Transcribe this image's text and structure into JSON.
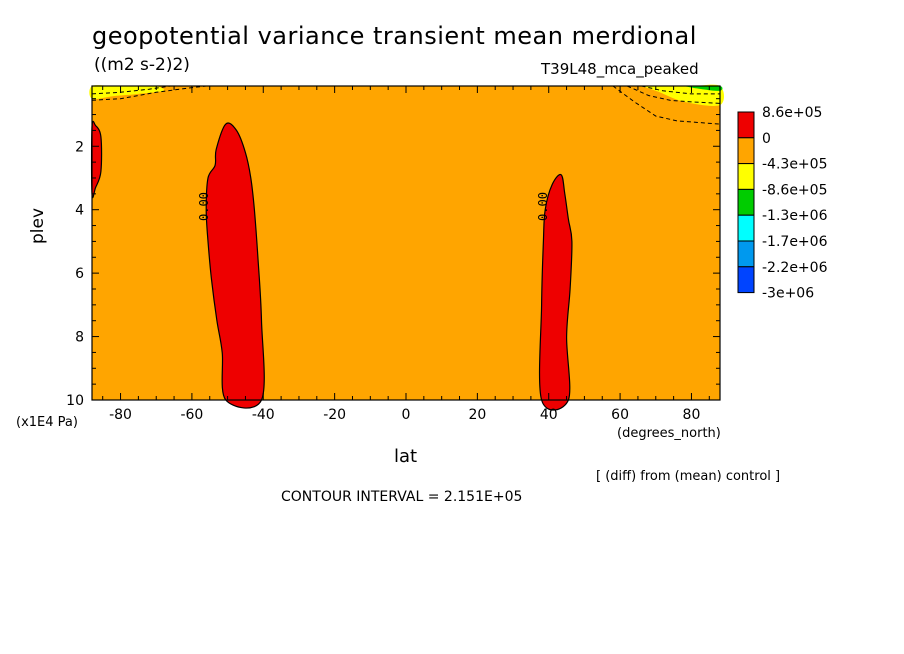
{
  "title": "geopotential variance transient mean merdional",
  "units": "((m2 s-2)2)",
  "run_name": "T39L48_mca_peaked",
  "note": "[ (diff) from (mean) control ]",
  "contour_interval": "CONTOUR INTERVAL = 2.151E+05",
  "chart_data": {
    "type": "contour",
    "xlabel": "lat",
    "xunits": "(degrees_north)",
    "ylabel": "plev",
    "yunits": "(x1E4 Pa)",
    "xlim": [
      -88,
      88
    ],
    "ylim": [
      10,
      0.1
    ],
    "y_inverted": true,
    "xticks": [
      -80,
      -60,
      -40,
      -20,
      0,
      20,
      40,
      60,
      80
    ],
    "xtick_labels": [
      "-80",
      "-60",
      "-40",
      "-20",
      "0",
      "20",
      "40",
      "60",
      "80"
    ],
    "yticks": [
      2,
      4,
      6,
      8,
      10
    ],
    "ytick_labels": [
      "2",
      "4",
      "6",
      "8",
      "10"
    ],
    "contour_labels": [
      {
        "text": "0.00",
        "lat": -55.5,
        "plev": 3.9
      },
      {
        "text": "0.00",
        "lat": 39.5,
        "plev": 3.9
      }
    ],
    "colorbar": {
      "labels": [
        "8.6e+05",
        "0",
        "-4.3e+05",
        "-8.6e+05",
        "-1.3e+06",
        "-1.7e+06",
        "-2.2e+06",
        "-3e+06"
      ],
      "colors": [
        "#ee0000",
        "#ffa500",
        "#ffff00",
        "#00cc00",
        "#00ffff",
        "#0099ee",
        "#0044ff"
      ]
    },
    "background_level_color": "#ffa500",
    "regions": [
      {
        "name": "positive-anomaly-southern-edge",
        "color": "#ee0000",
        "lat": [
          -88,
          -87,
          -85.5,
          -85.5,
          -87,
          -88
        ],
        "plev": [
          1.4,
          1.35,
          1.7,
          2.8,
          3.3,
          3.5
        ]
      },
      {
        "name": "positive-anomaly-southern-midlat",
        "color": "#ee0000",
        "lat": [
          -53.5,
          -53.2,
          -50.5,
          -47.5,
          -45,
          -43.5,
          -42.5,
          -41.5,
          -40.5,
          -40.5,
          -50.5,
          -51.5,
          -53,
          -54.5,
          -55.5,
          -56,
          -55.5
        ],
        "plev": [
          2.6,
          2.1,
          1.3,
          1.5,
          2.2,
          3.0,
          4.0,
          5.5,
          7.5,
          10,
          10,
          8.5,
          7.5,
          6.2,
          5.0,
          4.0,
          3.0
        ]
      },
      {
        "name": "positive-anomaly-northern-midlat",
        "color": "#ee0000",
        "lat": [
          39,
          41,
          43.5,
          44.5,
          45.5,
          46.5,
          46,
          45,
          45.5,
          38,
          38,
          38.5
        ],
        "plev": [
          4.0,
          3.2,
          2.9,
          3.5,
          4.3,
          5.0,
          6.5,
          8.0,
          10,
          10,
          7.0,
          5.0
        ]
      },
      {
        "name": "negative-anomaly-top-south",
        "color": "#ffff00",
        "lat": [
          -88,
          -82,
          -75,
          -70,
          -68,
          -75,
          -82,
          -88
        ],
        "plev": [
          0.1,
          0.1,
          0.1,
          0.1,
          0.25,
          0.35,
          0.42,
          0.5
        ]
      },
      {
        "name": "negative-anomaly-top-north",
        "color": "#ffff00",
        "lat": [
          60,
          65,
          70,
          78,
          88,
          88,
          80,
          72,
          67
        ],
        "plev": [
          0.1,
          0.1,
          0.25,
          0.6,
          0.7,
          0.1,
          0.1,
          0.1,
          0.1
        ]
      },
      {
        "name": "negative-anomaly-top-north-strong",
        "color": "#00cc00",
        "lat": [
          78,
          83,
          88,
          88,
          82
        ],
        "plev": [
          0.1,
          0.2,
          0.25,
          0.1,
          0.1
        ]
      }
    ],
    "dashed_contours": [
      {
        "lat": [
          -88,
          -80,
          -70,
          -60,
          -56
        ],
        "plev": [
          0.55,
          0.5,
          0.3,
          0.15,
          0.1
        ]
      },
      {
        "lat": [
          -88,
          -80,
          -72,
          -66
        ],
        "plev": [
          0.35,
          0.3,
          0.2,
          0.1
        ]
      },
      {
        "lat": [
          58,
          64,
          70,
          76,
          82,
          88
        ],
        "plev": [
          0.1,
          0.6,
          1.05,
          1.2,
          1.25,
          1.3
        ]
      },
      {
        "lat": [
          62,
          68,
          74,
          80,
          88
        ],
        "plev": [
          0.1,
          0.4,
          0.55,
          0.6,
          0.65
        ]
      },
      {
        "lat": [
          66,
          72,
          80,
          88
        ],
        "plev": [
          0.1,
          0.25,
          0.35,
          0.35
        ]
      }
    ]
  }
}
